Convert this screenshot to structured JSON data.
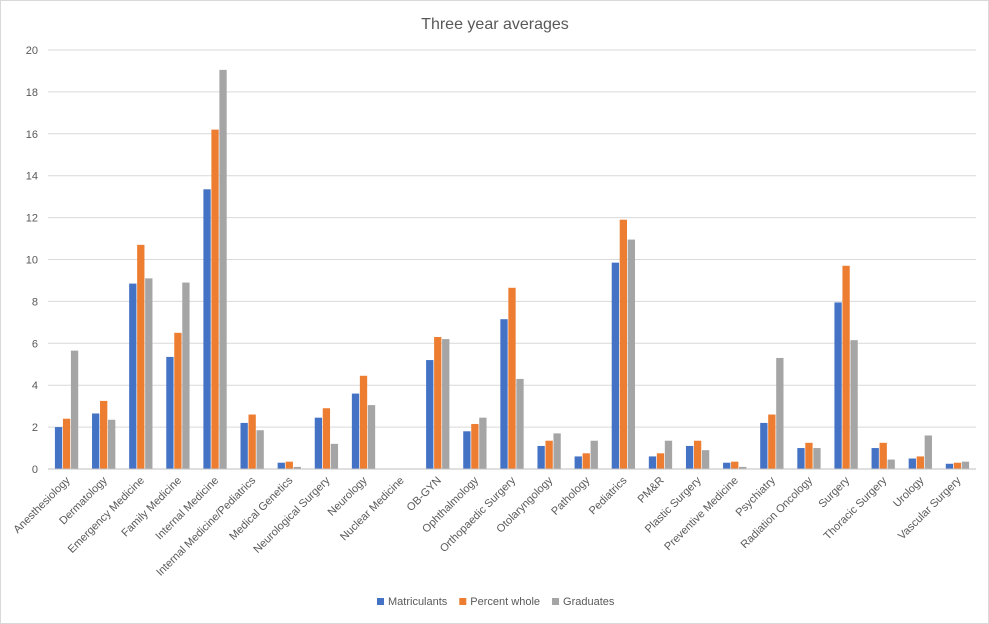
{
  "chart_data": {
    "type": "bar",
    "title": "Three year averages",
    "xlabel": "",
    "ylabel": "",
    "ylim": [
      0,
      20
    ],
    "yticks": [
      0,
      2,
      4,
      6,
      8,
      10,
      12,
      14,
      16,
      18,
      20
    ],
    "grid": true,
    "legend_position": "bottom",
    "categories": [
      "Anesthesiology",
      "Dermatology",
      "Emergency Medicine",
      "Family Medicine",
      "Internal Medicine",
      "Internal Medicine/Pediatrics",
      "Medical Genetics",
      "Neurological Surgery",
      "Neurology",
      "Nuclear Medicine",
      "OB-GYN",
      "Ophthalmology",
      "Orthopaedic Surgery",
      "Otolaryngology",
      "Pathology",
      "Pediatrics",
      "PM&R",
      "Plastic Surgery",
      "Preventive Medicine",
      "Psychiatry",
      "Radiation Oncology",
      "Surgery",
      "Thoracic Surgery",
      "Urology",
      "Vascular Surgery"
    ],
    "series": [
      {
        "name": "Matriculants",
        "color": "#4472c4",
        "values": [
          2.0,
          2.65,
          8.85,
          5.35,
          13.35,
          2.2,
          0.3,
          2.45,
          3.6,
          0,
          5.2,
          1.8,
          7.15,
          1.1,
          0.6,
          9.85,
          0.6,
          1.1,
          0.3,
          2.2,
          1.0,
          7.95,
          1.0,
          0.5,
          0.25
        ]
      },
      {
        "name": "Percent whole",
        "color": "#ed7d31",
        "values": [
          2.4,
          3.25,
          10.7,
          6.5,
          16.2,
          2.6,
          0.35,
          2.9,
          4.45,
          0,
          6.3,
          2.15,
          8.65,
          1.35,
          0.75,
          11.9,
          0.75,
          1.35,
          0.35,
          2.6,
          1.25,
          9.7,
          1.25,
          0.6,
          0.3
        ]
      },
      {
        "name": "Graduates",
        "color": "#a5a5a5",
        "values": [
          5.65,
          2.35,
          9.1,
          8.9,
          19.05,
          1.85,
          0.1,
          1.2,
          3.05,
          0,
          6.2,
          2.45,
          4.3,
          1.7,
          1.35,
          10.95,
          1.35,
          0.9,
          0.1,
          5.3,
          1.0,
          6.15,
          0.45,
          1.6,
          0.35
        ]
      }
    ]
  }
}
